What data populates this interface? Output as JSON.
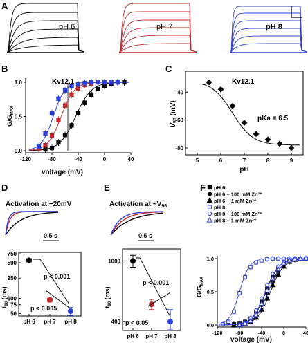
{
  "panels": {
    "A": {
      "letter": "A",
      "labels": [
        "pH 6",
        "pH 7",
        "pH 8"
      ],
      "colors": [
        "#000000",
        "#c0272d",
        "#2c3fd6"
      ]
    },
    "B": {
      "letter": "B",
      "title": "Kv12.1",
      "ylabel": "G/G",
      "ylabel_sub": "MAX",
      "xlabel": "voltage (mV)"
    },
    "C": {
      "letter": "C",
      "title": "Kv12.1",
      "ylabel": "V",
      "ylabel_sub": "50",
      "ylabel_unit": " (mV)",
      "xlabel": "pH",
      "annotation": "pKa = 6.5"
    },
    "D": {
      "letter": "D",
      "title": "Activation at +20mV",
      "scale": "0.5 s",
      "ylabel": "t",
      "ylabel_sub": "90",
      "ylabel_unit": " (ms)",
      "p_upper": "p < 0.001",
      "p_lower": "p < 0.005"
    },
    "E": {
      "letter": "E",
      "title_pre": "Activation at ~V",
      "title_sub": "98",
      "scale": "0.5 s",
      "ylabel": "t",
      "ylabel_sub": "90",
      "ylabel_unit": " (ms)",
      "p_upper": "p < 0.001",
      "p_lower": "p < 0.05"
    },
    "F": {
      "letter": "F",
      "ylabel": "G/G",
      "ylabel_sub": "MAX",
      "xlabel": "voltage (mV)",
      "legend": [
        "pH 6",
        "pH 6 + 100 mM Zn²⁺",
        "pH 6 + 1 mM Zn²⁺",
        "pH 8",
        "pH 8 + 100 mM Zn²⁺",
        "pH 8 + 1 mM Zn²⁺"
      ]
    }
  },
  "chart_data": [
    {
      "panel": "B",
      "type": "line",
      "title": "Kv12.1",
      "xlabel": "voltage (mV)",
      "ylabel": "G/GMAX",
      "xlim": [
        -120,
        40
      ],
      "ylim": [
        0,
        1.0
      ],
      "xticks": [
        "-120",
        "-80",
        "-40",
        "0",
        "40"
      ],
      "yticks": [
        "0.0",
        "0.5",
        "1.0"
      ],
      "series": [
        {
          "color": "#000000",
          "x": [
            -90,
            -80,
            -70,
            -60,
            -50,
            -40,
            -30,
            -20,
            -10,
            0,
            10,
            20,
            30
          ],
          "y": [
            0.02,
            0.04,
            0.12,
            0.23,
            0.37,
            0.55,
            0.7,
            0.82,
            0.9,
            0.95,
            0.98,
            1.0,
            1.0
          ]
        },
        {
          "color": "#c0272d",
          "x": [
            -100,
            -90,
            -80,
            -70,
            -60,
            -50,
            -40,
            -30,
            -20,
            -10,
            0,
            10,
            20
          ],
          "y": [
            0.03,
            0.08,
            0.22,
            0.45,
            0.66,
            0.82,
            0.91,
            0.96,
            0.98,
            1.0,
            1.0,
            1.0,
            1.0
          ]
        },
        {
          "color": "#2c3fd6",
          "x": [
            -100,
            -90,
            -80,
            -70,
            -60,
            -50,
            -40,
            -30,
            -20,
            -10,
            0,
            10,
            20
          ],
          "y": [
            0.06,
            0.25,
            0.55,
            0.76,
            0.88,
            0.94,
            0.97,
            0.99,
            1.0,
            1.0,
            1.0,
            1.0,
            1.0
          ]
        }
      ]
    },
    {
      "panel": "C",
      "type": "scatter",
      "title": "Kv12.1",
      "xlabel": "pH",
      "ylabel": "V50 (mV)",
      "xlim": [
        4.5,
        9.5
      ],
      "ylim": [
        -85,
        -25
      ],
      "xticks": [
        "5",
        "6",
        "7",
        "8",
        "9"
      ],
      "yticks": [
        "-40",
        "-60",
        "-80"
      ],
      "x": [
        5.5,
        6.0,
        6.5,
        7.0,
        7.5,
        8.0,
        8.5,
        9.0
      ],
      "y": [
        -33,
        -38,
        -50,
        -62,
        -70,
        -74,
        -77,
        -80
      ]
    },
    {
      "panel": "D",
      "type": "scatter",
      "xlabel": "",
      "ylabel": "t90 (ms)",
      "categories": [
        "pH 6",
        "pH 7",
        "pH 8"
      ],
      "values": [
        560,
        93,
        56
      ],
      "errors": [
        40,
        8,
        10
      ],
      "colors": [
        "#000000",
        "#c0272d",
        "#2c3fd6"
      ],
      "yscale": "log",
      "ylim": [
        45,
        800
      ],
      "yticks": [
        "750",
        "500",
        "250",
        "100",
        "75",
        "50"
      ]
    },
    {
      "panel": "E",
      "type": "scatter",
      "xlabel": "",
      "ylabel": "t90 (ms)",
      "categories": [
        "pH 6",
        "pH 7",
        "pH 8"
      ],
      "values": [
        1000,
        520,
        400
      ],
      "errors": [
        90,
        40,
        80
      ],
      "colors": [
        "#000000",
        "#c0272d",
        "#2c3fd6"
      ],
      "yscale": "log",
      "ylim": [
        350,
        1200
      ],
      "yticks": [
        "1000",
        "400"
      ]
    },
    {
      "panel": "F",
      "type": "line",
      "xlabel": "voltage (mV)",
      "ylabel": "G/GMAX",
      "xlim": [
        -120,
        40
      ],
      "ylim": [
        0,
        1.0
      ],
      "xticks": [
        "-120",
        "-80",
        "-40",
        "0",
        "40"
      ],
      "yticks": [
        "0.0",
        "0.5",
        "1.0"
      ],
      "series": [
        {
          "name": "pH 6",
          "marker": "square-filled",
          "color": "#000000",
          "x": [
            -90,
            -80,
            -70,
            -60,
            -50,
            -40,
            -30,
            -20,
            -10,
            0,
            10,
            20,
            30,
            40
          ],
          "y": [
            0.01,
            0.02,
            0.05,
            0.1,
            0.2,
            0.35,
            0.55,
            0.72,
            0.85,
            0.93,
            0.97,
            0.99,
            1.0,
            1.0
          ]
        },
        {
          "name": "pH 6 + 100 mM Zn²⁺",
          "marker": "circle-filled",
          "color": "#000000",
          "x": [
            -90,
            -80,
            -70,
            -60,
            -50,
            -40,
            -30,
            -20,
            -10,
            0,
            10,
            20,
            30,
            40
          ],
          "y": [
            0.01,
            0.01,
            0.03,
            0.07,
            0.15,
            0.3,
            0.48,
            0.66,
            0.8,
            0.9,
            0.96,
            0.99,
            1.0,
            1.0
          ]
        },
        {
          "name": "pH 6 + 1 mM Zn²⁺",
          "marker": "triangle-filled",
          "color": "#000000",
          "x": [
            -90,
            -80,
            -70,
            -60,
            -50,
            -40,
            -30,
            -20,
            -10,
            0,
            10,
            20,
            30,
            40
          ],
          "y": [
            0.0,
            0.01,
            0.02,
            0.05,
            0.11,
            0.23,
            0.4,
            0.6,
            0.76,
            0.88,
            0.95,
            0.98,
            1.0,
            1.0
          ]
        },
        {
          "name": "pH 8",
          "marker": "square-open",
          "color": "#2c3fd6",
          "x": [
            -110,
            -100,
            -90,
            -80,
            -70,
            -60,
            -50,
            -40,
            -30,
            -20,
            -10,
            0,
            10,
            20,
            30,
            40
          ],
          "y": [
            0.01,
            0.05,
            0.2,
            0.48,
            0.72,
            0.87,
            0.94,
            0.97,
            0.99,
            1.0,
            1.0,
            1.0,
            1.0,
            1.0,
            1.0,
            1.0
          ]
        },
        {
          "name": "pH 8 + 100 mM Zn²⁺",
          "marker": "circle-open",
          "color": "#2c3fd6",
          "x": [
            -80,
            -70,
            -60,
            -50,
            -40,
            -30,
            -20,
            -10,
            0,
            10,
            20,
            30,
            40
          ],
          "y": [
            0.01,
            0.04,
            0.1,
            0.22,
            0.4,
            0.6,
            0.77,
            0.88,
            0.95,
            0.98,
            1.0,
            1.0,
            1.0
          ]
        },
        {
          "name": "pH 8 + 1 mM Zn²⁺",
          "marker": "triangle-open",
          "color": "#2c3fd6",
          "x": [
            -80,
            -70,
            -60,
            -50,
            -40,
            -30,
            -20,
            -10,
            0,
            10,
            20,
            30,
            40
          ],
          "y": [
            0.0,
            0.02,
            0.06,
            0.15,
            0.32,
            0.52,
            0.7,
            0.84,
            0.93,
            0.97,
            0.99,
            1.0,
            1.0
          ]
        }
      ]
    }
  ]
}
